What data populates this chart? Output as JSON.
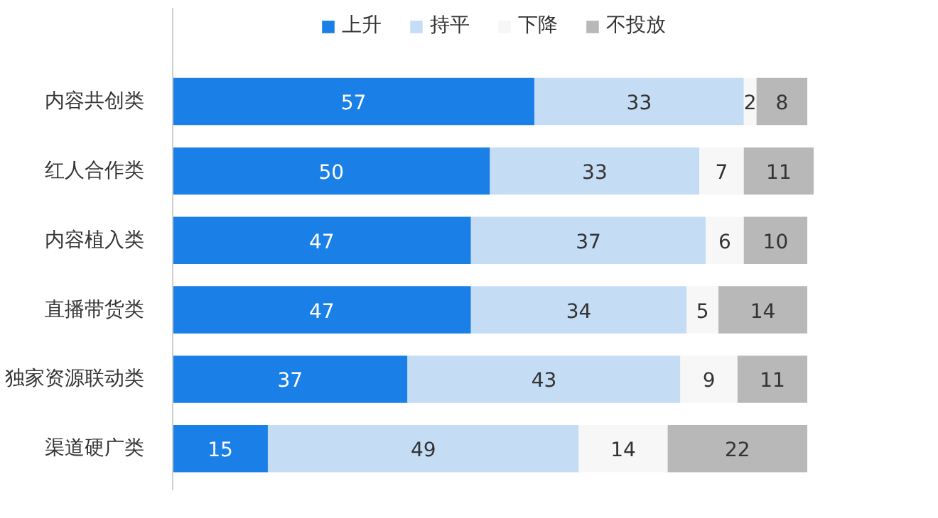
{
  "chart_data": {
    "type": "bar",
    "orientation": "horizontal",
    "stacked": true,
    "data_labels": true,
    "legend": "top",
    "grid": false,
    "categories": [
      "内容共创类",
      "红人合作类",
      "内容植入类",
      "直播带货类",
      "独家资源联动类",
      "渠道硬广类"
    ],
    "series": [
      {
        "name": "上升",
        "color": "#1a7fe6",
        "values": [
          57,
          50,
          47,
          47,
          37,
          15
        ]
      },
      {
        "name": "持平",
        "color": "#c5dcf5",
        "values": [
          33,
          33,
          37,
          34,
          43,
          49
        ]
      },
      {
        "name": "下降",
        "color": "#f7f7f7",
        "values": [
          2,
          7,
          6,
          5,
          9,
          14
        ]
      },
      {
        "name": "不投放",
        "color": "#b8b8b8",
        "values": [
          8,
          11,
          10,
          14,
          11,
          22
        ]
      }
    ]
  }
}
